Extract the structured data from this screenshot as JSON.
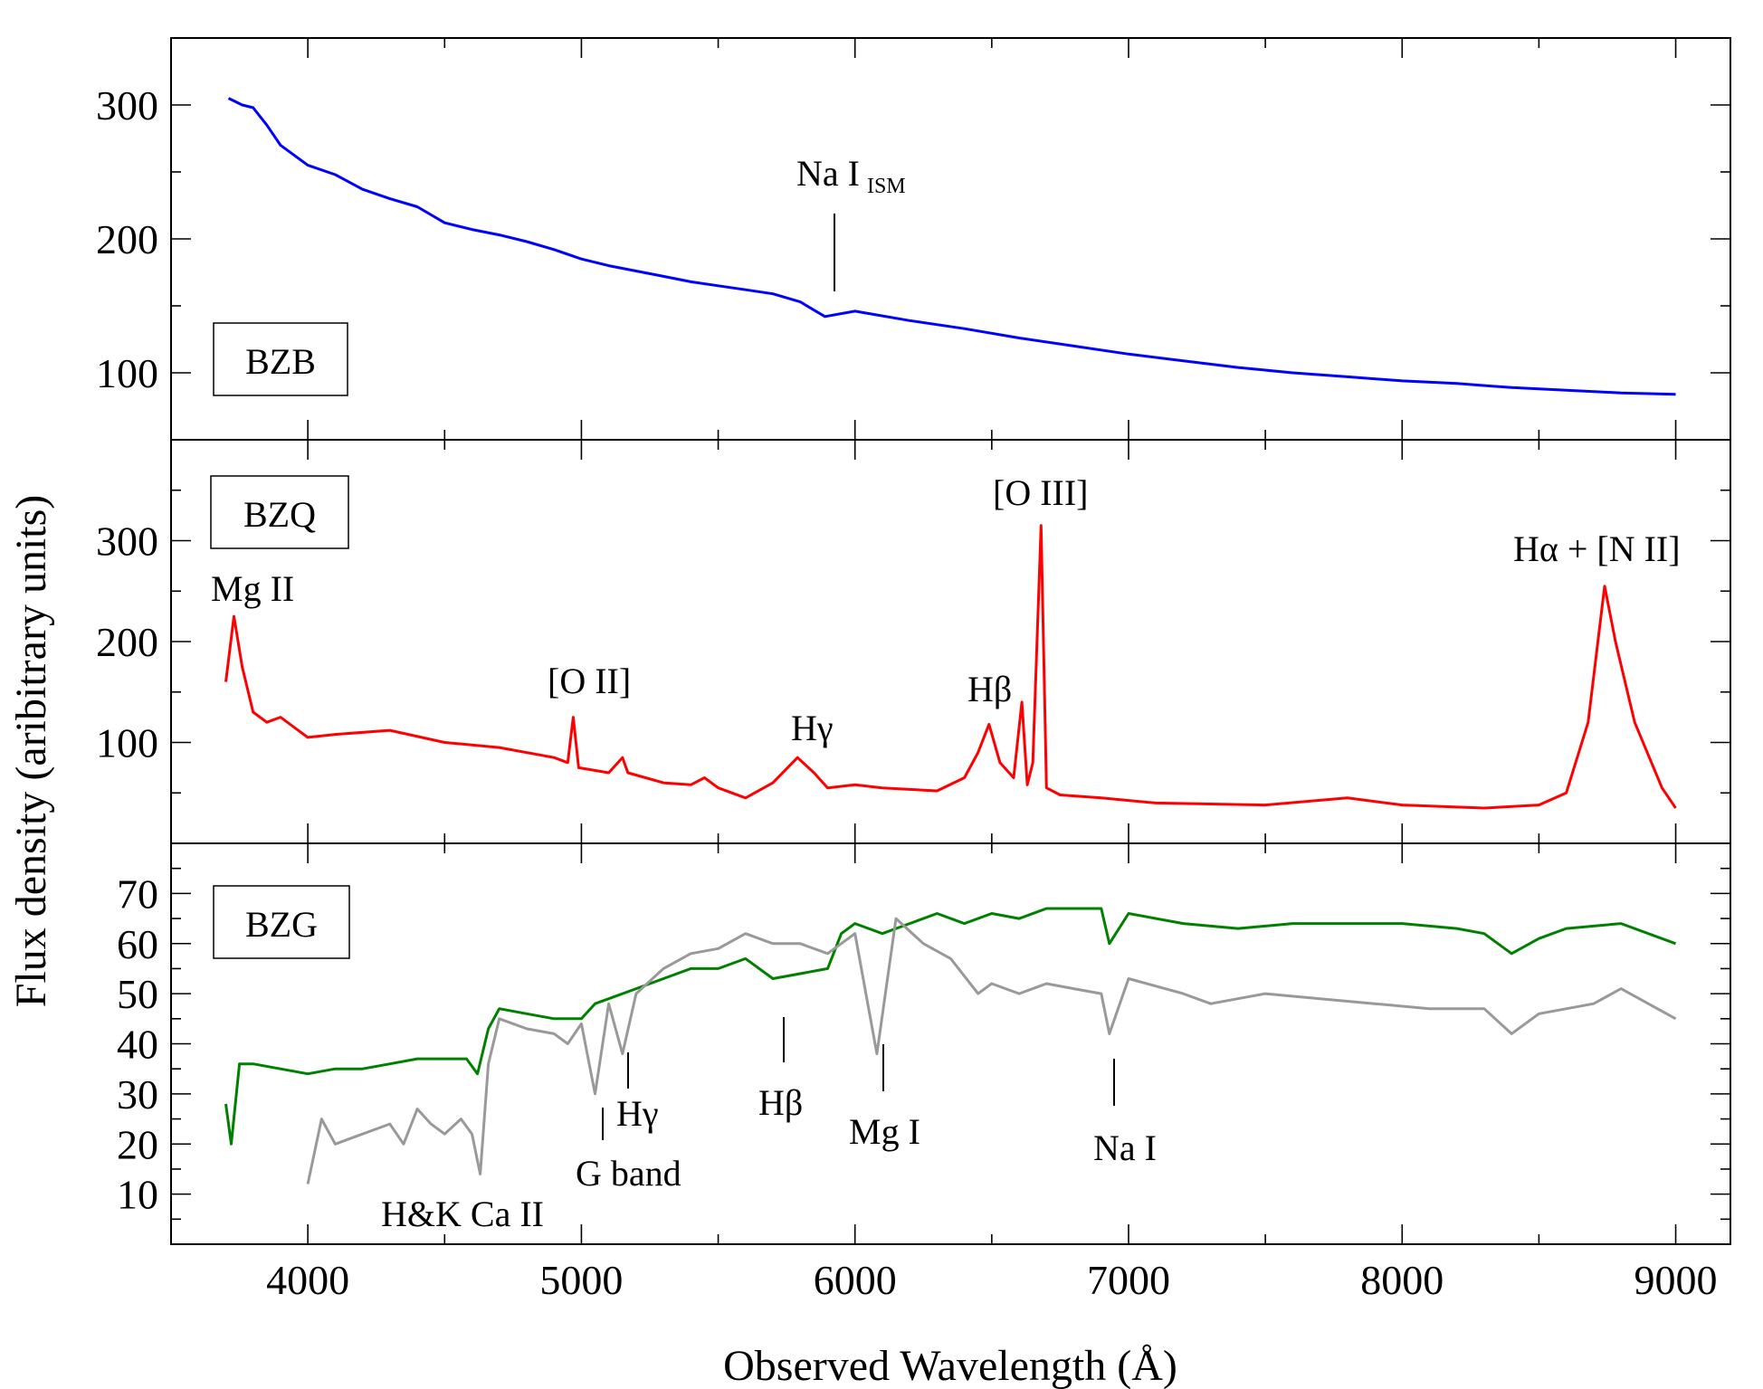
{
  "chart_data": {
    "type": "line",
    "xlabel": "Observed Wavelength (Å)",
    "ylabel": "Flux density (aribitrary units)",
    "xlim": [
      3500,
      9200
    ],
    "xticks": [
      4000,
      5000,
      6000,
      7000,
      8000,
      9000
    ],
    "panels": [
      {
        "tag": "BZB",
        "ylim": [
          50,
          350
        ],
        "yticks": [
          100,
          200,
          300
        ],
        "series": [
          {
            "color": "#0000ff",
            "x": [
              3710,
              3760,
              3800,
              3850,
              3900,
              4000,
              4100,
              4200,
              4300,
              4400,
              4500,
              4600,
              4700,
              4800,
              4900,
              5000,
              5100,
              5200,
              5300,
              5400,
              5500,
              5600,
              5700,
              5800,
              5890,
              6000,
              6200,
              6400,
              6600,
              6800,
              7000,
              7200,
              7400,
              7600,
              7800,
              8000,
              8200,
              8400,
              8600,
              8800,
              9000
            ],
            "y": [
              305,
              300,
              298,
              285,
              270,
              255,
              248,
              237,
              230,
              224,
              212,
              207,
              203,
              198,
              192,
              185,
              180,
              176,
              172,
              168,
              165,
              162,
              159,
              153,
              142,
              146,
              139,
              133,
              126,
              120,
              114,
              109,
              104,
              100,
              97,
              94,
              92,
              89,
              87,
              85,
              84
            ]
          }
        ],
        "annotations": [
          {
            "text": "Na I",
            "sub": "ISM",
            "x": 5900
          }
        ]
      },
      {
        "tag": "BZQ",
        "ylim": [
          0,
          400
        ],
        "yticks": [
          100,
          200,
          300
        ],
        "series": [
          {
            "color": "#ff0000",
            "x": [
              3700,
              3730,
              3760,
              3800,
              3850,
              3900,
              4000,
              4100,
              4300,
              4500,
              4700,
              4900,
              4950,
              4970,
              4990,
              5100,
              5150,
              5170,
              5300,
              5400,
              5450,
              5500,
              5600,
              5700,
              5790,
              5850,
              5900,
              6000,
              6100,
              6300,
              6400,
              6450,
              6490,
              6530,
              6580,
              6610,
              6630,
              6650,
              6680,
              6700,
              6750,
              6900,
              7100,
              7500,
              7800,
              8000,
              8300,
              8500,
              8600,
              8680,
              8740,
              8780,
              8850,
              8950,
              9000
            ],
            "y": [
              160,
              225,
              175,
              130,
              120,
              125,
              105,
              108,
              112,
              100,
              95,
              85,
              80,
              125,
              75,
              70,
              85,
              70,
              60,
              58,
              65,
              55,
              45,
              60,
              85,
              70,
              55,
              58,
              55,
              52,
              65,
              90,
              118,
              80,
              65,
              140,
              58,
              80,
              315,
              55,
              48,
              45,
              40,
              38,
              45,
              38,
              35,
              38,
              50,
              120,
              255,
              200,
              120,
              55,
              35
            ]
          }
        ],
        "annotations": [
          {
            "text": "Mg II",
            "x": 3740
          },
          {
            "text": "[O  II]",
            "x": 5050
          },
          {
            "text": "Hγ",
            "x": 5840
          },
          {
            "text": "Hβ",
            "x": 6500
          },
          {
            "text": "[O  III]",
            "x": 6680
          },
          {
            "text": "Hα + [N  II]",
            "x": 8740
          }
        ]
      },
      {
        "tag": "BZG",
        "ylim": [
          0,
          80
        ],
        "yticks": [
          10,
          20,
          30,
          40,
          50,
          60,
          70
        ],
        "series": [
          {
            "color": "#008000",
            "x": [
              3700,
              3720,
              3750,
              3800,
              3900,
              4000,
              4100,
              4200,
              4300,
              4400,
              4500,
              4580,
              4620,
              4660,
              4700,
              4800,
              4900,
              5000,
              5050,
              5100,
              5200,
              5300,
              5400,
              5500,
              5600,
              5700,
              5800,
              5900,
              5950,
              6000,
              6100,
              6200,
              6300,
              6400,
              6500,
              6600,
              6700,
              6800,
              6900,
              6930,
              7000,
              7200,
              7400,
              7600,
              7800,
              8000,
              8200,
              8300,
              8400,
              8500,
              8600,
              8800,
              9000
            ],
            "y": [
              28,
              20,
              36,
              36,
              35,
              34,
              35,
              35,
              36,
              37,
              37,
              37,
              34,
              43,
              47,
              46,
              45,
              45,
              48,
              49,
              51,
              53,
              55,
              55,
              57,
              53,
              54,
              55,
              62,
              64,
              62,
              64,
              66,
              64,
              66,
              65,
              67,
              67,
              67,
              60,
              66,
              64,
              63,
              64,
              64,
              64,
              63,
              62,
              58,
              61,
              63,
              64,
              60
            ]
          },
          {
            "color": "#999999",
            "x": [
              4000,
              4050,
              4100,
              4200,
              4300,
              4350,
              4400,
              4450,
              4500,
              4560,
              4600,
              4630,
              4660,
              4700,
              4800,
              4900,
              4950,
              5000,
              5050,
              5100,
              5150,
              5200,
              5300,
              5400,
              5500,
              5600,
              5700,
              5800,
              5900,
              6000,
              6080,
              6150,
              6250,
              6350,
              6450,
              6500,
              6600,
              6700,
              6800,
              6900,
              6930,
              7000,
              7200,
              7300,
              7500,
              7700,
              7900,
              8100,
              8300,
              8400,
              8500,
              8700,
              8800,
              9000
            ],
            "y": [
              12,
              25,
              20,
              22,
              24,
              20,
              27,
              24,
              22,
              25,
              22,
              14,
              36,
              45,
              43,
              42,
              40,
              44,
              30,
              48,
              38,
              50,
              55,
              58,
              59,
              62,
              60,
              60,
              58,
              62,
              38,
              65,
              60,
              57,
              50,
              52,
              50,
              52,
              51,
              50,
              42,
              53,
              50,
              48,
              50,
              49,
              48,
              47,
              47,
              42,
              46,
              48,
              51,
              45
            ]
          }
        ],
        "annotations": [
          {
            "text": "H&K Ca II",
            "x": 4530
          },
          {
            "text": "G band",
            "x": 5060
          },
          {
            "text": "Hγ",
            "x": 5150
          },
          {
            "text": "Hβ",
            "x": 5720
          },
          {
            "text": "Mg I",
            "x": 6080
          },
          {
            "text": "Na I",
            "x": 6930
          }
        ]
      }
    ]
  }
}
